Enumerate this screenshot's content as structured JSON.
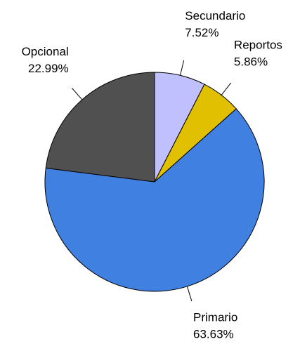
{
  "chart_data": {
    "type": "pie",
    "categories": [
      "Secundario",
      "Reportos",
      "Primario",
      "Opcional"
    ],
    "values": [
      7.52,
      5.86,
      63.63,
      22.99
    ],
    "value_labels": [
      "7.52%",
      "5.86%",
      "63.63%",
      "22.99%"
    ],
    "colors": [
      "#c0c0ff",
      "#e0c000",
      "#4080e0",
      "#505050"
    ]
  }
}
